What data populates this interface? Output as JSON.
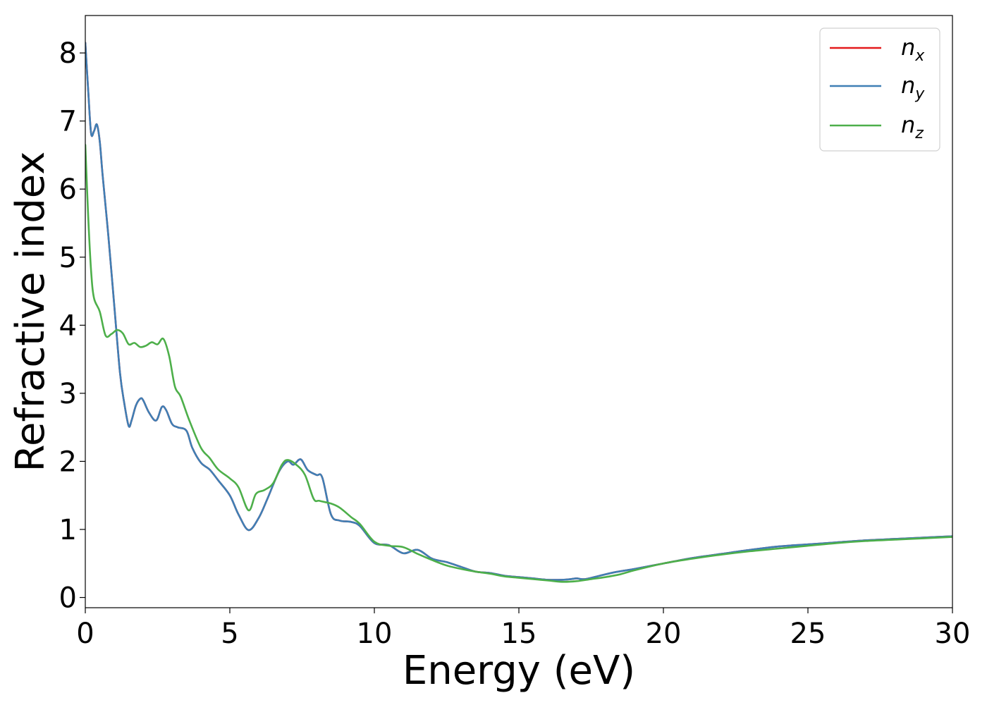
{
  "chart_data": {
    "type": "line",
    "title": "",
    "xlabel": "Energy (eV)",
    "ylabel": "Refractive index",
    "xlim": [
      0,
      30
    ],
    "ylim": [
      -0.15,
      8.55
    ],
    "xticks": [
      0,
      5,
      10,
      15,
      20,
      25,
      30
    ],
    "yticks": [
      0,
      1,
      2,
      3,
      4,
      5,
      6,
      7,
      8
    ],
    "grid": false,
    "legend_position": "top-right",
    "series": [
      {
        "name": "n",
        "subscript": "x",
        "color": "#e41a1c",
        "x": [
          0,
          0.1,
          0.2,
          0.3,
          0.4,
          0.5,
          0.6,
          0.8,
          1.0,
          1.2,
          1.35,
          1.5,
          1.6,
          1.75,
          1.9,
          2.0,
          2.2,
          2.45,
          2.65,
          2.8,
          3.0,
          3.2,
          3.5,
          3.7,
          4.0,
          4.3,
          4.6,
          5.0,
          5.3,
          5.65,
          6.0,
          6.3,
          6.7,
          7.0,
          7.2,
          7.45,
          7.7,
          8.0,
          8.2,
          8.5,
          8.8,
          9.2,
          9.5,
          10.0,
          10.5,
          11.0,
          11.5,
          12.0,
          12.5,
          13.0,
          13.5,
          14.0,
          14.5,
          15.0,
          15.5,
          16.0,
          16.5,
          16.8,
          17.0,
          17.3,
          17.8,
          18.3,
          19.0,
          20.0,
          21.0,
          22.0,
          23.0,
          24.0,
          25.0,
          26.0,
          27.0,
          28.0,
          29.0,
          30.0
        ],
        "y": [
          8.15,
          7.45,
          6.82,
          6.85,
          6.95,
          6.7,
          6.2,
          5.3,
          4.3,
          3.3,
          2.85,
          2.52,
          2.6,
          2.82,
          2.92,
          2.9,
          2.72,
          2.6,
          2.8,
          2.75,
          2.55,
          2.5,
          2.45,
          2.2,
          1.98,
          1.88,
          1.72,
          1.5,
          1.22,
          0.99,
          1.17,
          1.45,
          1.85,
          2.0,
          1.95,
          2.03,
          1.87,
          1.8,
          1.76,
          1.22,
          1.13,
          1.11,
          1.05,
          0.8,
          0.77,
          0.65,
          0.7,
          0.57,
          0.52,
          0.45,
          0.38,
          0.36,
          0.32,
          0.3,
          0.28,
          0.26,
          0.26,
          0.27,
          0.28,
          0.27,
          0.32,
          0.37,
          0.42,
          0.5,
          0.58,
          0.64,
          0.7,
          0.75,
          0.78,
          0.81,
          0.84,
          0.86,
          0.88,
          0.9
        ]
      },
      {
        "name": "n",
        "subscript": "y",
        "color": "#3f7fb5",
        "x": [
          0,
          0.1,
          0.2,
          0.3,
          0.4,
          0.5,
          0.6,
          0.8,
          1.0,
          1.2,
          1.35,
          1.5,
          1.6,
          1.75,
          1.9,
          2.0,
          2.2,
          2.45,
          2.65,
          2.8,
          3.0,
          3.2,
          3.5,
          3.7,
          4.0,
          4.3,
          4.6,
          5.0,
          5.3,
          5.65,
          6.0,
          6.3,
          6.7,
          7.0,
          7.2,
          7.45,
          7.7,
          8.0,
          8.2,
          8.5,
          8.8,
          9.2,
          9.5,
          10.0,
          10.5,
          11.0,
          11.5,
          12.0,
          12.5,
          13.0,
          13.5,
          14.0,
          14.5,
          15.0,
          15.5,
          16.0,
          16.5,
          16.8,
          17.0,
          17.3,
          17.8,
          18.3,
          19.0,
          20.0,
          21.0,
          22.0,
          23.0,
          24.0,
          25.0,
          26.0,
          27.0,
          28.0,
          29.0,
          30.0
        ],
        "y": [
          8.15,
          7.45,
          6.82,
          6.85,
          6.95,
          6.7,
          6.2,
          5.3,
          4.3,
          3.3,
          2.85,
          2.52,
          2.6,
          2.82,
          2.92,
          2.9,
          2.72,
          2.6,
          2.8,
          2.75,
          2.55,
          2.5,
          2.45,
          2.2,
          1.98,
          1.88,
          1.72,
          1.5,
          1.22,
          0.99,
          1.17,
          1.45,
          1.85,
          2.0,
          1.95,
          2.03,
          1.87,
          1.8,
          1.76,
          1.22,
          1.13,
          1.11,
          1.05,
          0.8,
          0.77,
          0.65,
          0.7,
          0.57,
          0.52,
          0.45,
          0.38,
          0.36,
          0.32,
          0.3,
          0.28,
          0.26,
          0.26,
          0.27,
          0.28,
          0.27,
          0.32,
          0.37,
          0.42,
          0.5,
          0.58,
          0.64,
          0.7,
          0.75,
          0.78,
          0.81,
          0.84,
          0.86,
          0.88,
          0.9
        ]
      },
      {
        "name": "n",
        "subscript": "z",
        "color": "#4daf4a",
        "x": [
          0,
          0.1,
          0.2,
          0.3,
          0.5,
          0.7,
          0.9,
          1.1,
          1.3,
          1.5,
          1.7,
          1.9,
          2.1,
          2.3,
          2.5,
          2.7,
          2.9,
          3.1,
          3.3,
          3.6,
          4.0,
          4.3,
          4.6,
          5.0,
          5.3,
          5.65,
          5.9,
          6.2,
          6.5,
          6.8,
          7.0,
          7.3,
          7.6,
          7.9,
          8.1,
          8.5,
          8.8,
          9.2,
          9.5,
          10.0,
          10.5,
          11.0,
          11.5,
          12.0,
          12.5,
          13.0,
          13.5,
          14.0,
          14.5,
          15.0,
          15.5,
          16.0,
          16.5,
          17.0,
          17.5,
          18.0,
          18.5,
          19.0,
          20.0,
          21.0,
          22.0,
          23.0,
          24.0,
          25.0,
          26.0,
          27.0,
          28.0,
          29.0,
          30.0
        ],
        "y": [
          6.65,
          5.6,
          4.8,
          4.4,
          4.2,
          3.85,
          3.87,
          3.93,
          3.88,
          3.72,
          3.74,
          3.68,
          3.7,
          3.75,
          3.72,
          3.8,
          3.55,
          3.1,
          2.95,
          2.6,
          2.2,
          2.05,
          1.88,
          1.75,
          1.62,
          1.28,
          1.52,
          1.58,
          1.68,
          1.95,
          2.02,
          1.95,
          1.8,
          1.45,
          1.42,
          1.38,
          1.32,
          1.18,
          1.08,
          0.82,
          0.76,
          0.74,
          0.64,
          0.55,
          0.47,
          0.42,
          0.38,
          0.35,
          0.31,
          0.29,
          0.27,
          0.25,
          0.23,
          0.24,
          0.27,
          0.3,
          0.34,
          0.4,
          0.5,
          0.57,
          0.63,
          0.68,
          0.72,
          0.76,
          0.8,
          0.83,
          0.85,
          0.87,
          0.89
        ]
      }
    ]
  }
}
